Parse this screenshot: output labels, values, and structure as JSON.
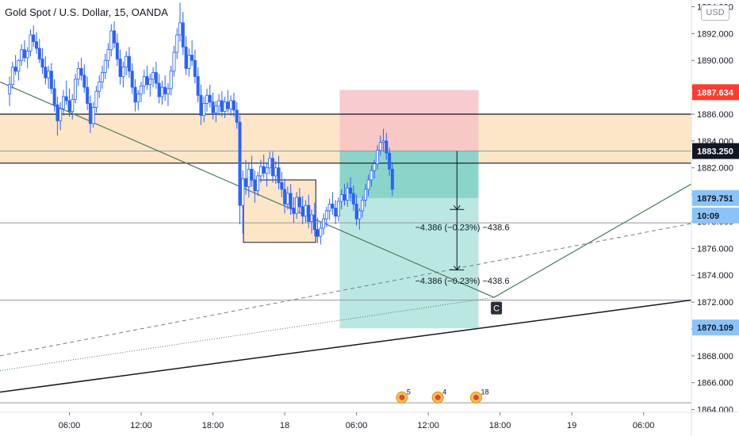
{
  "header": {
    "title": "Gold Spot / U.S. Dollar, 15, OANDA",
    "currency_button": "USD"
  },
  "colors": {
    "up_candle": "#2962ff",
    "down_candle": "#2962ff",
    "zone_fill": "#fde6c8",
    "stop_zone": "#f7c2c6",
    "target_zone": "#b2e4de",
    "target_zone_active": "#7fd0c4",
    "trend_line": "#4a7a5e",
    "support_line": "#131722",
    "price_red": "#ff3b30",
    "price_blue": "#8cc3f7",
    "price_black": "#131722"
  },
  "chart_data": {
    "type": "candlestick",
    "title": "Gold Spot / U.S. Dollar, 15, OANDA",
    "ylim": [
      1863.8,
      1894.5
    ],
    "y_ticks": [
      1864.0,
      1866.0,
      1868.0,
      1870.0,
      1872.0,
      1874.0,
      1876.0,
      1878.0,
      1880.0,
      1882.0,
      1884.0,
      1886.0,
      1888.0,
      1890.0,
      1892.0,
      1894.0
    ],
    "y_tick_labels": [
      "1864.000",
      "1866.000",
      "1868.000",
      "1870.000",
      "1872.000",
      "1874.000",
      "1876.000",
      "1878.000",
      "1880.000",
      "1882.000",
      "1884.000",
      "1886.000",
      "1888.000",
      "1890.000",
      "1892.000",
      "1894.000"
    ],
    "x_tick_labels": [
      "06:00",
      "12:00",
      "18:00",
      "18",
      "06:00",
      "12:00",
      "18:00",
      "19",
      "06:00"
    ],
    "x_tick_hours": [
      6,
      12,
      18,
      24,
      30,
      36,
      42,
      48,
      54
    ],
    "x_range_hours": [
      0.2,
      58.0
    ],
    "candles": [
      [
        1.0,
        1887.5,
        1888.8,
        1886.6,
        1888.2
      ],
      [
        1.25,
        1888.2,
        1889.9,
        1887.9,
        1889.5
      ],
      [
        1.5,
        1889.5,
        1890.4,
        1888.9,
        1889.2
      ],
      [
        1.75,
        1889.2,
        1890.1,
        1888.5,
        1890.0
      ],
      [
        2.0,
        1890.0,
        1891.2,
        1889.6,
        1890.8
      ],
      [
        2.25,
        1890.8,
        1891.5,
        1889.9,
        1890.2
      ],
      [
        2.5,
        1890.2,
        1891.0,
        1889.4,
        1890.7
      ],
      [
        2.75,
        1890.7,
        1892.3,
        1890.3,
        1891.9
      ],
      [
        3.0,
        1891.9,
        1892.6,
        1891.0,
        1891.4
      ],
      [
        3.25,
        1891.4,
        1892.1,
        1890.5,
        1890.9
      ],
      [
        3.5,
        1890.9,
        1891.6,
        1889.8,
        1890.1
      ],
      [
        3.75,
        1890.1,
        1890.9,
        1889.0,
        1889.5
      ],
      [
        4.0,
        1889.5,
        1890.3,
        1888.2,
        1888.7
      ],
      [
        4.25,
        1888.7,
        1889.6,
        1887.9,
        1889.2
      ],
      [
        4.5,
        1889.2,
        1889.8,
        1887.5,
        1887.9
      ],
      [
        4.75,
        1887.9,
        1888.6,
        1886.2,
        1886.7
      ],
      [
        5.0,
        1886.7,
        1887.3,
        1884.4,
        1885.5
      ],
      [
        5.25,
        1885.5,
        1886.9,
        1884.8,
        1886.4
      ],
      [
        5.5,
        1886.4,
        1887.8,
        1885.9,
        1887.3
      ],
      [
        5.75,
        1887.3,
        1888.5,
        1886.7,
        1887.0
      ],
      [
        6.0,
        1887.0,
        1887.9,
        1885.8,
        1886.2
      ],
      [
        6.25,
        1886.2,
        1887.5,
        1885.6,
        1887.1
      ],
      [
        6.5,
        1887.1,
        1889.0,
        1886.8,
        1888.6
      ],
      [
        6.75,
        1888.6,
        1889.9,
        1888.1,
        1889.4
      ],
      [
        7.0,
        1889.4,
        1890.2,
        1888.5,
        1888.9
      ],
      [
        7.25,
        1888.9,
        1889.7,
        1887.6,
        1888.0
      ],
      [
        7.5,
        1888.0,
        1888.8,
        1886.3,
        1886.8
      ],
      [
        7.75,
        1886.8,
        1887.4,
        1884.6,
        1885.3
      ],
      [
        8.0,
        1885.3,
        1886.9,
        1885.0,
        1886.5
      ],
      [
        8.25,
        1886.5,
        1888.1,
        1886.1,
        1887.7
      ],
      [
        8.5,
        1887.7,
        1888.9,
        1887.2,
        1888.4
      ],
      [
        8.75,
        1888.4,
        1889.6,
        1887.9,
        1889.1
      ],
      [
        9.0,
        1889.1,
        1890.5,
        1888.6,
        1890.0
      ],
      [
        9.25,
        1890.0,
        1891.3,
        1889.4,
        1890.8
      ],
      [
        9.5,
        1890.8,
        1892.7,
        1890.3,
        1892.2
      ],
      [
        9.75,
        1892.2,
        1892.9,
        1890.9,
        1891.3
      ],
      [
        10.0,
        1891.3,
        1892.0,
        1889.6,
        1890.1
      ],
      [
        10.25,
        1890.1,
        1890.8,
        1888.2,
        1888.8
      ],
      [
        10.5,
        1888.8,
        1889.9,
        1888.0,
        1889.5
      ],
      [
        10.75,
        1889.5,
        1890.7,
        1888.9,
        1890.3
      ],
      [
        11.0,
        1890.3,
        1891.0,
        1888.7,
        1889.2
      ],
      [
        11.25,
        1889.2,
        1889.8,
        1887.5,
        1888.0
      ],
      [
        11.5,
        1888.0,
        1888.6,
        1886.2,
        1886.9
      ],
      [
        11.75,
        1886.9,
        1887.8,
        1886.3,
        1887.5
      ],
      [
        12.0,
        1887.5,
        1888.4,
        1886.9,
        1888.1
      ],
      [
        12.25,
        1888.1,
        1889.3,
        1887.5,
        1888.8
      ],
      [
        12.5,
        1888.8,
        1889.6,
        1887.8,
        1888.2
      ],
      [
        12.75,
        1888.2,
        1889.0,
        1887.3,
        1888.6
      ],
      [
        13.0,
        1888.6,
        1889.5,
        1888.0,
        1889.1
      ],
      [
        13.25,
        1889.1,
        1889.9,
        1887.9,
        1888.3
      ],
      [
        13.5,
        1888.3,
        1889.0,
        1886.8,
        1887.3
      ],
      [
        13.75,
        1887.3,
        1888.5,
        1886.7,
        1888.0
      ],
      [
        14.0,
        1888.0,
        1888.9,
        1887.0,
        1887.5
      ],
      [
        14.25,
        1887.5,
        1888.3,
        1886.6,
        1887.9
      ],
      [
        14.5,
        1887.9,
        1889.6,
        1887.4,
        1889.2
      ],
      [
        14.75,
        1889.2,
        1891.1,
        1888.8,
        1890.6
      ],
      [
        15.0,
        1890.6,
        1892.4,
        1890.1,
        1891.9
      ],
      [
        15.25,
        1891.9,
        1894.3,
        1891.4,
        1892.8
      ],
      [
        15.5,
        1892.8,
        1893.6,
        1890.4,
        1891.0
      ],
      [
        15.75,
        1891.0,
        1891.8,
        1888.9,
        1889.4
      ],
      [
        16.0,
        1889.4,
        1890.9,
        1888.8,
        1890.4
      ],
      [
        16.25,
        1890.4,
        1891.5,
        1889.6,
        1890.0
      ],
      [
        16.5,
        1890.0,
        1890.8,
        1888.3,
        1888.8
      ],
      [
        16.75,
        1888.8,
        1889.5,
        1886.9,
        1887.4
      ],
      [
        17.0,
        1887.4,
        1888.2,
        1885.2,
        1885.9
      ],
      [
        17.25,
        1885.9,
        1887.3,
        1885.4,
        1886.8
      ],
      [
        17.5,
        1886.8,
        1887.9,
        1886.2,
        1887.4
      ],
      [
        17.75,
        1887.4,
        1888.2,
        1886.5,
        1886.9
      ],
      [
        18.0,
        1886.9,
        1887.6,
        1885.6,
        1886.1
      ],
      [
        18.25,
        1886.1,
        1887.0,
        1885.4,
        1886.6
      ],
      [
        18.5,
        1886.6,
        1887.5,
        1885.9,
        1887.0
      ],
      [
        18.75,
        1887.0,
        1887.7,
        1885.8,
        1886.2
      ],
      [
        19.0,
        1886.2,
        1887.3,
        1885.7,
        1886.9
      ],
      [
        19.25,
        1886.9,
        1887.8,
        1886.1,
        1886.4
      ],
      [
        19.5,
        1886.4,
        1887.4,
        1885.9,
        1887.0
      ],
      [
        19.75,
        1887.0,
        1887.6,
        1885.8,
        1886.3
      ],
      [
        20.0,
        1886.3,
        1886.9,
        1884.9,
        1885.4
      ],
      [
        20.25,
        1885.4,
        1885.9,
        1877.8,
        1879.2
      ],
      [
        20.5,
        1879.2,
        1881.8,
        1877.1,
        1881.2
      ],
      [
        20.75,
        1881.2,
        1882.6,
        1880.0,
        1880.6
      ],
      [
        21.0,
        1880.6,
        1882.3,
        1879.8,
        1881.9
      ],
      [
        21.25,
        1881.9,
        1882.9,
        1880.6,
        1881.1
      ],
      [
        21.5,
        1881.1,
        1881.8,
        1879.4,
        1880.3
      ],
      [
        21.75,
        1880.3,
        1881.7,
        1879.9,
        1881.4
      ],
      [
        22.0,
        1881.4,
        1882.6,
        1880.9,
        1882.1
      ],
      [
        22.25,
        1882.1,
        1883.0,
        1881.2,
        1881.6
      ],
      [
        22.5,
        1881.6,
        1882.4,
        1880.6,
        1882.0
      ],
      [
        22.75,
        1882.0,
        1883.2,
        1881.5,
        1882.7
      ],
      [
        23.0,
        1882.7,
        1883.2,
        1880.9,
        1881.4
      ],
      [
        23.25,
        1881.4,
        1882.5,
        1880.8,
        1882.0
      ],
      [
        23.5,
        1882.0,
        1882.9,
        1880.4,
        1880.9
      ],
      [
        23.75,
        1880.9,
        1881.7,
        1879.8,
        1880.4
      ],
      [
        24.0,
        1880.4,
        1881.2,
        1878.6,
        1879.3
      ],
      [
        24.25,
        1879.3,
        1880.6,
        1878.9,
        1880.1
      ],
      [
        24.5,
        1880.1,
        1880.8,
        1878.5,
        1879.0
      ],
      [
        24.75,
        1879.0,
        1879.8,
        1877.9,
        1878.6
      ],
      [
        25.0,
        1878.6,
        1880.2,
        1878.2,
        1879.8
      ],
      [
        25.25,
        1879.8,
        1880.5,
        1878.6,
        1879.1
      ],
      [
        25.5,
        1879.1,
        1879.9,
        1877.8,
        1878.4
      ],
      [
        25.75,
        1878.4,
        1879.6,
        1877.9,
        1879.2
      ],
      [
        26.0,
        1879.2,
        1880.0,
        1877.5,
        1878.0
      ],
      [
        26.25,
        1878.0,
        1878.9,
        1877.1,
        1878.5
      ],
      [
        26.5,
        1878.5,
        1879.4,
        1876.9,
        1877.4
      ],
      [
        26.75,
        1877.4,
        1878.3,
        1876.4,
        1876.9
      ],
      [
        27.0,
        1876.9,
        1877.9,
        1876.3,
        1877.5
      ],
      [
        27.25,
        1877.5,
        1878.6,
        1877.0,
        1878.2
      ],
      [
        27.5,
        1878.2,
        1879.1,
        1877.6,
        1878.8
      ],
      [
        27.75,
        1878.8,
        1879.7,
        1878.1,
        1879.3
      ],
      [
        28.0,
        1879.3,
        1880.2,
        1878.5,
        1879.0
      ],
      [
        28.25,
        1879.0,
        1879.6,
        1877.8,
        1878.4
      ],
      [
        28.5,
        1878.4,
        1879.8,
        1878.0,
        1879.5
      ],
      [
        28.75,
        1879.5,
        1880.4,
        1878.9,
        1880.0
      ],
      [
        29.0,
        1880.0,
        1880.8,
        1879.2,
        1879.6
      ],
      [
        29.25,
        1879.6,
        1880.9,
        1879.1,
        1880.5
      ],
      [
        29.5,
        1880.5,
        1881.3,
        1879.5,
        1880.1
      ],
      [
        29.75,
        1880.1,
        1880.7,
        1878.8,
        1879.3
      ],
      [
        30.0,
        1879.3,
        1880.0,
        1877.7,
        1878.2
      ],
      [
        30.25,
        1878.2,
        1879.0,
        1877.4,
        1878.8
      ],
      [
        30.5,
        1878.8,
        1879.9,
        1878.3,
        1879.6
      ],
      [
        30.75,
        1879.6,
        1880.8,
        1879.1,
        1880.4
      ],
      [
        31.0,
        1880.4,
        1881.5,
        1879.9,
        1881.1
      ],
      [
        31.25,
        1881.1,
        1882.2,
        1880.6,
        1881.8
      ],
      [
        31.5,
        1881.8,
        1882.6,
        1881.2,
        1882.3
      ],
      [
        31.75,
        1882.3,
        1883.7,
        1881.9,
        1883.3
      ],
      [
        32.0,
        1883.3,
        1884.4,
        1882.9,
        1883.9
      ],
      [
        32.25,
        1883.9,
        1884.9,
        1883.2,
        1884.0
      ],
      [
        32.5,
        1884.0,
        1884.6,
        1882.6,
        1883.1
      ],
      [
        32.75,
        1883.1,
        1883.5,
        1881.4,
        1881.9
      ],
      [
        33.0,
        1881.9,
        1882.3,
        1879.9,
        1880.4
      ]
    ],
    "horizontal_levels": [
      1886.0,
      1883.25,
      1882.35,
      1877.9,
      1872.15,
      1864.5
    ],
    "resistance_zone": {
      "low": 1882.35,
      "high": 1886.0
    },
    "consolidation_box": {
      "x0": 20.55,
      "x1": 26.6,
      "low": 1876.45,
      "high": 1881.1
    },
    "position": {
      "x0": 28.6,
      "x1": 40.2,
      "stop": 1887.8,
      "entry": 1883.25,
      "target": 1870.05,
      "current": 1879.751
    },
    "measure_arrow": {
      "x": 38.4,
      "top": 1883.25,
      "mid": 1878.9,
      "bottom": 1874.4
    },
    "annotations": [
      "−4.386 (−0.23%) −438.6",
      "−4.386 (−0.23%) −438.6",
      "C"
    ],
    "events": [
      {
        "label": "5"
      },
      {
        "label": "4"
      },
      {
        "label": "18"
      }
    ],
    "price_labels": [
      {
        "value": "1887.634",
        "style": "red"
      },
      {
        "value": "1883.250",
        "style": "black"
      },
      {
        "value": "1879.751",
        "style": "blue"
      },
      {
        "value": "10:09",
        "style": "blue"
      },
      {
        "value": "1870.109",
        "style": "blue"
      }
    ],
    "grid": false,
    "legend": "none"
  }
}
